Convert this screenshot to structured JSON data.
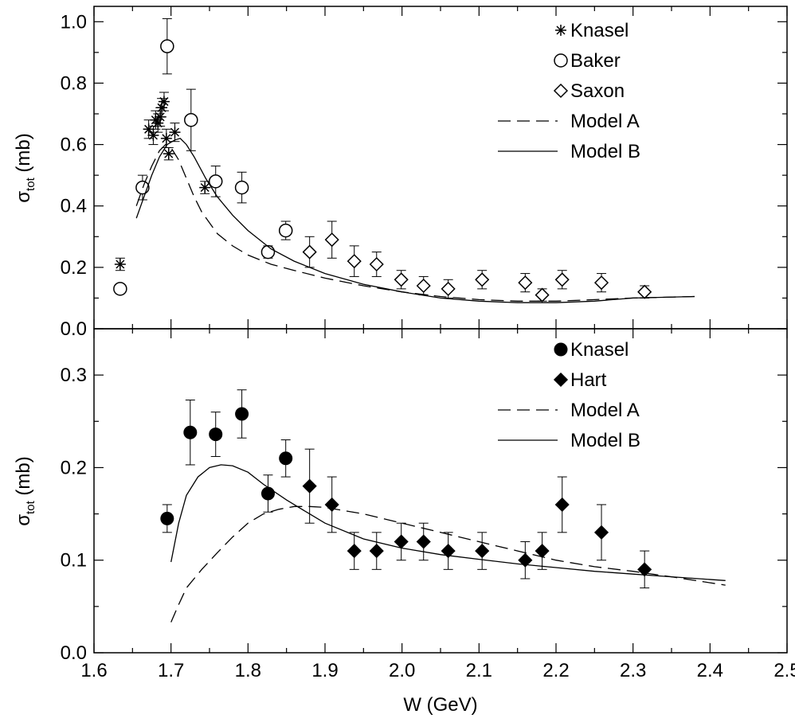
{
  "chart_data": [
    {
      "type": "scatter",
      "panel": "top",
      "ylabel": "σ",
      "ylabel_sub": "tot",
      "ylabel_unit": "(mb)",
      "xlim": [
        1.6,
        2.5
      ],
      "ylim": [
        0.0,
        1.05
      ],
      "yticks": [
        0.0,
        0.2,
        0.4,
        0.6,
        0.8,
        1.0
      ],
      "ytick_labels": [
        "0.0",
        "0.2",
        "0.4",
        "0.6",
        "0.8",
        "1.0"
      ],
      "grid": false,
      "legend_position": "top-right",
      "series": [
        {
          "name": "Knasel",
          "marker": "asterisk",
          "points": [
            {
              "x": 1.634,
              "y": 0.21,
              "err": 0.02
            },
            {
              "x": 1.671,
              "y": 0.65,
              "err": 0.03
            },
            {
              "x": 1.677,
              "y": 0.63,
              "err": 0.03
            },
            {
              "x": 1.68,
              "y": 0.68,
              "err": 0.03
            },
            {
              "x": 1.683,
              "y": 0.67,
              "err": 0.03
            },
            {
              "x": 1.686,
              "y": 0.69,
              "err": 0.03
            },
            {
              "x": 1.688,
              "y": 0.72,
              "err": 0.03
            },
            {
              "x": 1.691,
              "y": 0.74,
              "err": 0.03
            },
            {
              "x": 1.694,
              "y": 0.62,
              "err": 0.03
            },
            {
              "x": 1.697,
              "y": 0.57,
              "err": 0.02
            },
            {
              "x": 1.705,
              "y": 0.64,
              "err": 0.03
            },
            {
              "x": 1.744,
              "y": 0.46,
              "err": 0.02
            }
          ]
        },
        {
          "name": "Baker",
          "marker": "open-circle",
          "points": [
            {
              "x": 1.634,
              "y": 0.13,
              "err": 0.0
            },
            {
              "x": 1.663,
              "y": 0.46,
              "err": 0.04
            },
            {
              "x": 1.695,
              "y": 0.92,
              "err": 0.09
            },
            {
              "x": 1.726,
              "y": 0.68,
              "err": 0.1
            },
            {
              "x": 1.758,
              "y": 0.48,
              "err": 0.05
            },
            {
              "x": 1.792,
              "y": 0.46,
              "err": 0.05
            },
            {
              "x": 1.826,
              "y": 0.25,
              "err": 0.02
            },
            {
              "x": 1.849,
              "y": 0.32,
              "err": 0.03
            }
          ]
        },
        {
          "name": "Saxon",
          "marker": "open-diamond",
          "points": [
            {
              "x": 1.88,
              "y": 0.25,
              "err": 0.05
            },
            {
              "x": 1.909,
              "y": 0.29,
              "err": 0.06
            },
            {
              "x": 1.938,
              "y": 0.22,
              "err": 0.05
            },
            {
              "x": 1.967,
              "y": 0.21,
              "err": 0.04
            },
            {
              "x": 1.999,
              "y": 0.16,
              "err": 0.03
            },
            {
              "x": 2.028,
              "y": 0.14,
              "err": 0.03
            },
            {
              "x": 2.06,
              "y": 0.13,
              "err": 0.03
            },
            {
              "x": 2.104,
              "y": 0.16,
              "err": 0.03
            },
            {
              "x": 2.16,
              "y": 0.15,
              "err": 0.03
            },
            {
              "x": 2.182,
              "y": 0.11,
              "err": 0.02
            },
            {
              "x": 2.208,
              "y": 0.16,
              "err": 0.03
            },
            {
              "x": 2.259,
              "y": 0.15,
              "err": 0.03
            },
            {
              "x": 2.315,
              "y": 0.12,
              "err": 0.02
            }
          ]
        },
        {
          "name": "Model A",
          "style": "dashed",
          "line": [
            [
              1.655,
              0.4
            ],
            [
              1.665,
              0.47
            ],
            [
              1.675,
              0.53
            ],
            [
              1.685,
              0.58
            ],
            [
              1.693,
              0.6
            ],
            [
              1.7,
              0.59
            ],
            [
              1.71,
              0.55
            ],
            [
              1.72,
              0.49
            ],
            [
              1.73,
              0.43
            ],
            [
              1.74,
              0.38
            ],
            [
              1.76,
              0.31
            ],
            [
              1.78,
              0.27
            ],
            [
              1.8,
              0.24
            ],
            [
              1.83,
              0.21
            ],
            [
              1.86,
              0.19
            ],
            [
              1.9,
              0.165
            ],
            [
              1.95,
              0.14
            ],
            [
              2.0,
              0.12
            ],
            [
              2.05,
              0.105
            ],
            [
              2.1,
              0.095
            ],
            [
              2.15,
              0.09
            ],
            [
              2.2,
              0.09
            ],
            [
              2.25,
              0.095
            ],
            [
              2.3,
              0.1
            ],
            [
              2.38,
              0.105
            ]
          ]
        },
        {
          "name": "Model B",
          "style": "solid",
          "line": [
            [
              1.655,
              0.36
            ],
            [
              1.665,
              0.43
            ],
            [
              1.675,
              0.5
            ],
            [
              1.685,
              0.56
            ],
            [
              1.695,
              0.6
            ],
            [
              1.705,
              0.615
            ],
            [
              1.712,
              0.62
            ],
            [
              1.72,
              0.6
            ],
            [
              1.73,
              0.56
            ],
            [
              1.745,
              0.49
            ],
            [
              1.76,
              0.43
            ],
            [
              1.78,
              0.37
            ],
            [
              1.8,
              0.32
            ],
            [
              1.83,
              0.26
            ],
            [
              1.86,
              0.22
            ],
            [
              1.9,
              0.18
            ],
            [
              1.95,
              0.145
            ],
            [
              2.0,
              0.12
            ],
            [
              2.05,
              0.1
            ],
            [
              2.1,
              0.09
            ],
            [
              2.15,
              0.085
            ],
            [
              2.2,
              0.085
            ],
            [
              2.25,
              0.09
            ],
            [
              2.3,
              0.1
            ],
            [
              2.38,
              0.105
            ]
          ]
        }
      ]
    },
    {
      "type": "scatter",
      "panel": "bottom",
      "xlabel": "W (GeV)",
      "ylabel": "σ",
      "ylabel_sub": "tot",
      "ylabel_unit": "(mb)",
      "xlim": [
        1.6,
        2.5
      ],
      "ylim": [
        0.0,
        0.35
      ],
      "xticks": [
        1.6,
        1.7,
        1.8,
        1.9,
        2.0,
        2.1,
        2.2,
        2.3,
        2.4,
        2.5
      ],
      "xtick_labels": [
        "1.6",
        "1.7",
        "1.8",
        "1.9",
        "2.0",
        "2.1",
        "2.2",
        "2.3",
        "2.4",
        "2.5"
      ],
      "yticks": [
        0.0,
        0.1,
        0.2,
        0.3
      ],
      "ytick_labels": [
        "0.0",
        "0.1",
        "0.2",
        "0.3"
      ],
      "grid": false,
      "legend_position": "top-right",
      "series": [
        {
          "name": "Knasel",
          "marker": "filled-circle",
          "points": [
            {
              "x": 1.695,
              "y": 0.145,
              "err": 0.015
            },
            {
              "x": 1.725,
              "y": 0.238,
              "err": 0.035
            },
            {
              "x": 1.758,
              "y": 0.236,
              "err": 0.024
            },
            {
              "x": 1.792,
              "y": 0.258,
              "err": 0.026
            },
            {
              "x": 1.826,
              "y": 0.172,
              "err": 0.02
            },
            {
              "x": 1.849,
              "y": 0.21,
              "err": 0.02
            }
          ]
        },
        {
          "name": "Hart",
          "marker": "filled-diamond",
          "points": [
            {
              "x": 1.88,
              "y": 0.18,
              "err": 0.04
            },
            {
              "x": 1.909,
              "y": 0.16,
              "err": 0.03
            },
            {
              "x": 1.938,
              "y": 0.11,
              "err": 0.02
            },
            {
              "x": 1.967,
              "y": 0.11,
              "err": 0.02
            },
            {
              "x": 1.999,
              "y": 0.12,
              "err": 0.02
            },
            {
              "x": 2.028,
              "y": 0.12,
              "err": 0.02
            },
            {
              "x": 2.06,
              "y": 0.11,
              "err": 0.02
            },
            {
              "x": 2.104,
              "y": 0.11,
              "err": 0.02
            },
            {
              "x": 2.16,
              "y": 0.1,
              "err": 0.02
            },
            {
              "x": 2.182,
              "y": 0.11,
              "err": 0.02
            },
            {
              "x": 2.208,
              "y": 0.16,
              "err": 0.03
            },
            {
              "x": 2.259,
              "y": 0.13,
              "err": 0.03
            },
            {
              "x": 2.315,
              "y": 0.09,
              "err": 0.02
            }
          ]
        },
        {
          "name": "Model A",
          "style": "dashed",
          "line": [
            [
              1.7,
              0.033
            ],
            [
              1.71,
              0.052
            ],
            [
              1.72,
              0.07
            ],
            [
              1.74,
              0.09
            ],
            [
              1.76,
              0.108
            ],
            [
              1.78,
              0.125
            ],
            [
              1.8,
              0.14
            ],
            [
              1.82,
              0.15
            ],
            [
              1.84,
              0.155
            ],
            [
              1.86,
              0.158
            ],
            [
              1.88,
              0.158
            ],
            [
              1.9,
              0.157
            ],
            [
              1.95,
              0.15
            ],
            [
              2.0,
              0.14
            ],
            [
              2.05,
              0.13
            ],
            [
              2.1,
              0.12
            ],
            [
              2.15,
              0.11
            ],
            [
              2.2,
              0.1
            ],
            [
              2.25,
              0.093
            ],
            [
              2.3,
              0.088
            ],
            [
              2.35,
              0.082
            ],
            [
              2.42,
              0.073
            ]
          ]
        },
        {
          "name": "Model B",
          "style": "solid",
          "line": [
            [
              1.7,
              0.098
            ],
            [
              1.71,
              0.14
            ],
            [
              1.72,
              0.17
            ],
            [
              1.735,
              0.19
            ],
            [
              1.75,
              0.2
            ],
            [
              1.765,
              0.203
            ],
            [
              1.78,
              0.202
            ],
            [
              1.8,
              0.195
            ],
            [
              1.82,
              0.182
            ],
            [
              1.85,
              0.165
            ],
            [
              1.88,
              0.15
            ],
            [
              1.9,
              0.14
            ],
            [
              1.95,
              0.123
            ],
            [
              2.0,
              0.113
            ],
            [
              2.05,
              0.106
            ],
            [
              2.1,
              0.101
            ],
            [
              2.15,
              0.096
            ],
            [
              2.2,
              0.092
            ],
            [
              2.25,
              0.088
            ],
            [
              2.3,
              0.085
            ],
            [
              2.35,
              0.082
            ],
            [
              2.42,
              0.078
            ]
          ]
        }
      ]
    }
  ]
}
